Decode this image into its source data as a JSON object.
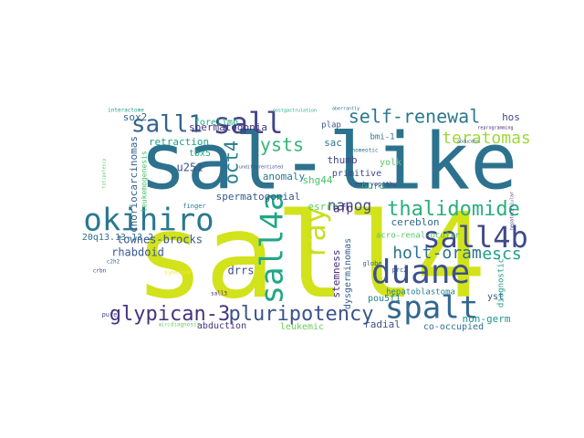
{
  "words": [
    {
      "text": "sall4",
      "color": "#d2e21b"
    },
    {
      "text": "sal-like",
      "color": "#2c728e"
    },
    {
      "text": "okihiro",
      "color": "#2a788e"
    },
    {
      "text": "duane",
      "color": "#3b528b"
    },
    {
      "text": "spalt",
      "color": "#31688e"
    },
    {
      "text": "sall4a",
      "color": "#21a685"
    },
    {
      "text": "sall4b",
      "color": "#3e4a89"
    },
    {
      "text": "ray",
      "color": "#c8e020"
    },
    {
      "text": "thalidomide",
      "color": "#29af7f"
    },
    {
      "text": "glypican-3",
      "color": "#46337e"
    },
    {
      "text": "pluripotency",
      "color": "#3b528b"
    },
    {
      "text": "sall1",
      "color": "#33638d"
    },
    {
      "text": "sall",
      "color": "#404688"
    },
    {
      "text": "self-renewal",
      "color": "#2a788e"
    },
    {
      "text": "teratomas",
      "color": "#9dd93b"
    },
    {
      "text": "ysts",
      "color": "#34b679"
    },
    {
      "text": "oct4",
      "color": "#287d8e"
    },
    {
      "text": "holt-oram",
      "color": "#2c728e"
    },
    {
      "text": "escs",
      "color": "#1f9e89"
    },
    {
      "text": "nanog",
      "color": "#3e4989"
    },
    {
      "text": "townes-brocks",
      "color": "#39568c"
    },
    {
      "text": "spermatogonia",
      "color": "#46337e"
    },
    {
      "text": "retraction",
      "color": "#1fa088"
    },
    {
      "text": "forelimb",
      "color": "#22a884"
    },
    {
      "text": "sox2",
      "color": "#31688e"
    },
    {
      "text": "choriocarcinomas",
      "color": "#365c8d"
    },
    {
      "text": "u251",
      "color": "#3b528b"
    },
    {
      "text": "tbx5",
      "color": "#25ac82"
    },
    {
      "text": "leukemogenesis",
      "color": "#4ac16d"
    },
    {
      "text": "20q13.13-13.2",
      "color": "#2d708e"
    },
    {
      "text": "rhabdoid",
      "color": "#38598c"
    },
    {
      "text": "spermatogonial",
      "color": "#39568c"
    },
    {
      "text": "anomaly",
      "color": "#2a788e"
    },
    {
      "text": "shg44",
      "color": "#4ac16d"
    },
    {
      "text": "esrrb",
      "color": "#5ec962"
    },
    {
      "text": "drrs",
      "color": "#3e4a89"
    },
    {
      "text": "afp",
      "color": "#482475"
    },
    {
      "text": "nurd",
      "color": "#32b67a"
    },
    {
      "text": "cereblon",
      "color": "#31688e"
    },
    {
      "text": "acro-renal-ocular",
      "color": "#52c569"
    },
    {
      "text": "dysgerminomas",
      "color": "#35608d"
    },
    {
      "text": "stemness",
      "color": "#472c7a"
    },
    {
      "text": "primitive",
      "color": "#3e4989"
    },
    {
      "text": "yolk",
      "color": "#5ec962"
    },
    {
      "text": "thumb",
      "color": "#404688"
    },
    {
      "text": "sac",
      "color": "#2c728e"
    },
    {
      "text": "plap",
      "color": "#3b528b"
    },
    {
      "text": "bmi-1",
      "color": "#2a788e"
    },
    {
      "text": "hos",
      "color": "#3e4989"
    },
    {
      "text": "radial",
      "color": "#3b528b"
    },
    {
      "text": "non-germ",
      "color": "#20938c"
    },
    {
      "text": "abduction",
      "color": "#46327e"
    },
    {
      "text": "leukemic",
      "color": "#6ccd5a"
    },
    {
      "text": "co-occupied",
      "color": "#2c728e"
    },
    {
      "text": "pou5f1",
      "color": "#27808e"
    },
    {
      "text": "yst",
      "color": "#3b528b"
    },
    {
      "text": "diagnostic",
      "color": "#1f9e89"
    },
    {
      "text": "hepatoblastoma",
      "color": "#26828e"
    },
    {
      "text": "prc2",
      "color": "#3e4989"
    },
    {
      "text": "globe",
      "color": "#355f8d"
    },
    {
      "text": "sall3",
      "color": "#481f70"
    },
    {
      "text": "c2h2",
      "color": "#2c728e"
    },
    {
      "text": "crbn",
      "color": "#404688"
    },
    {
      "text": "pure",
      "color": "#3e4989"
    },
    {
      "text": "finger",
      "color": "#2a788e"
    },
    {
      "text": "syndrome",
      "color": "#fde725"
    },
    {
      "text": "embryopathy",
      "color": "#3e4989"
    },
    {
      "text": "homeotic",
      "color": "#2c728e"
    },
    {
      "text": "diagnosis",
      "color": "#6ccd5a"
    },
    {
      "text": "mirs",
      "color": "#4ac16d"
    },
    {
      "text": "undifferentiated",
      "color": "#3b528b"
    },
    {
      "text": "reprogramming",
      "color": "#472c7a"
    },
    {
      "text": "abducens",
      "color": "#38598c"
    },
    {
      "text": "aberrantly",
      "color": "#2a788e"
    },
    {
      "text": "hepatocellular",
      "color": "#414487"
    },
    {
      "text": "totipotency",
      "color": "#5ec962"
    },
    {
      "text": "interactome",
      "color": "#1f9e89"
    },
    {
      "text": "postgastrulation",
      "color": "#22a884"
    }
  ]
}
